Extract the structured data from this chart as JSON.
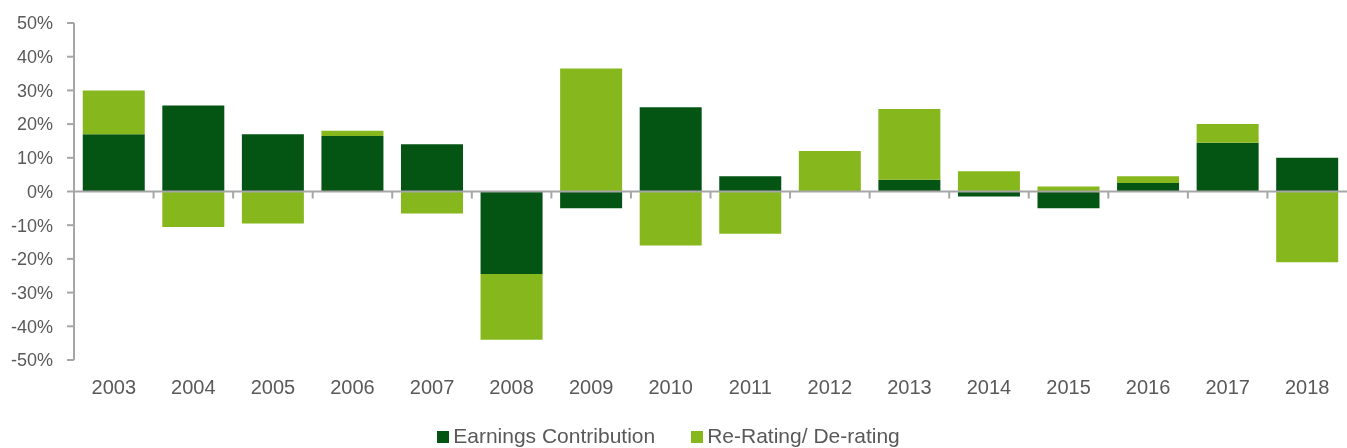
{
  "chart_data": {
    "type": "bar",
    "stacked": true,
    "categories": [
      "2003",
      "2004",
      "2005",
      "2006",
      "2007",
      "2008",
      "2009",
      "2010",
      "2011",
      "2012",
      "2013",
      "2014",
      "2015",
      "2016",
      "2017",
      "2018"
    ],
    "series": [
      {
        "name": "Earnings Contribution",
        "color": "#045414",
        "values": [
          17,
          25.5,
          17,
          16.5,
          14,
          -24.5,
          -5,
          25,
          4.5,
          0,
          3.5,
          -1.5,
          -5,
          2.5,
          14.5,
          10
        ]
      },
      {
        "name": "Re-Rating/ De-rating",
        "color": "#86b71d",
        "values": [
          13,
          -10.5,
          -9.5,
          1.5,
          -6.5,
          -19.5,
          36.5,
          -16,
          -12.5,
          12,
          21,
          6,
          1.5,
          2,
          5.5,
          -21
        ]
      }
    ],
    "ylim": [
      -50,
      50
    ],
    "yticks": [
      {
        "value": -50,
        "label": "-50%"
      },
      {
        "value": -40,
        "label": "-40%"
      },
      {
        "value": -30,
        "label": "-30%"
      },
      {
        "value": -20,
        "label": "-20%"
      },
      {
        "value": -10,
        "label": "-10%"
      },
      {
        "value": 0,
        "label": "0%"
      },
      {
        "value": 10,
        "label": "10%"
      },
      {
        "value": 20,
        "label": "20%"
      },
      {
        "value": 30,
        "label": "30%"
      },
      {
        "value": 40,
        "label": "40%"
      },
      {
        "value": 50,
        "label": "50%"
      }
    ],
    "legend": "bottom"
  }
}
